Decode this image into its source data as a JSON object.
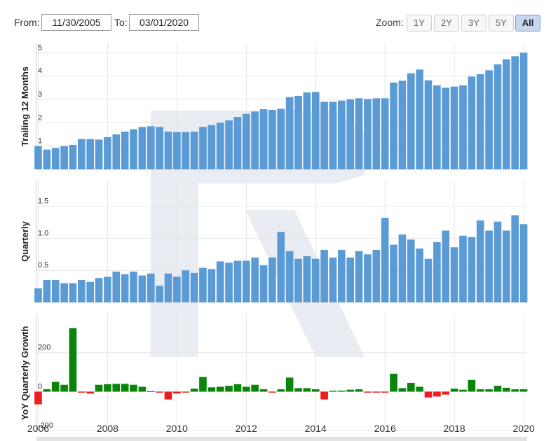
{
  "controls": {
    "from_label": "From:",
    "from_value": "11/30/2005",
    "to_label": "To:",
    "to_value": "03/01/2020",
    "zoom_label": "Zoom:",
    "zoom_options": [
      "1Y",
      "2Y",
      "3Y",
      "5Y",
      "All"
    ],
    "zoom_selected": "All"
  },
  "colors": {
    "bar": "#5b9bd5",
    "positive": "#0a850a",
    "negative": "#ee1c1c",
    "grid": "#e6e6e6"
  },
  "chart_data": [
    {
      "type": "bar",
      "ylabel": "Trailing 12 Months",
      "ylim": [
        0,
        5.4
      ],
      "yticks": [
        "0",
        "1",
        "2",
        "3",
        "4",
        "5"
      ],
      "x": [
        2006,
        2006.25,
        2006.5,
        2006.75,
        2007,
        2007.25,
        2007.5,
        2007.75,
        2008,
        2008.25,
        2008.5,
        2008.75,
        2009,
        2009.25,
        2009.5,
        2009.75,
        2010,
        2010.25,
        2010.5,
        2010.75,
        2011,
        2011.25,
        2011.5,
        2011.75,
        2012,
        2012.25,
        2012.5,
        2012.75,
        2013,
        2013.25,
        2013.5,
        2013.75,
        2014,
        2014.25,
        2014.5,
        2014.75,
        2015,
        2015.25,
        2015.5,
        2015.75,
        2016,
        2016.25,
        2016.5,
        2016.75,
        2017,
        2017.25,
        2017.5,
        2017.75,
        2018,
        2018.25,
        2018.5,
        2018.75,
        2019,
        2019.25,
        2019.5,
        2019.75,
        2020
      ],
      "values": [
        1.0,
        0.85,
        0.92,
        1.0,
        1.05,
        1.3,
        1.3,
        1.28,
        1.38,
        1.5,
        1.62,
        1.72,
        1.82,
        1.85,
        1.82,
        1.62,
        1.6,
        1.6,
        1.62,
        1.82,
        1.9,
        2.0,
        2.1,
        2.25,
        2.38,
        2.48,
        2.58,
        2.55,
        2.6,
        3.1,
        3.15,
        3.3,
        3.32,
        2.9,
        2.9,
        2.95,
        3.0,
        3.05,
        3.02,
        3.05,
        3.05,
        3.72,
        3.8,
        4.12,
        4.28,
        3.82,
        3.6,
        3.5,
        3.55,
        3.6,
        3.98,
        4.08,
        4.25,
        4.5,
        4.72,
        4.85,
        5.0
      ]
    },
    {
      "type": "bar",
      "ylabel": "Quarterly",
      "ylim": [
        0,
        1.9
      ],
      "yticks": [
        "0.0",
        "0.5",
        "1.0",
        "1.5"
      ],
      "x": [
        2006,
        2006.25,
        2006.5,
        2006.75,
        2007,
        2007.25,
        2007.5,
        2007.75,
        2008,
        2008.25,
        2008.5,
        2008.75,
        2009,
        2009.25,
        2009.5,
        2009.75,
        2010,
        2010.25,
        2010.5,
        2010.75,
        2011,
        2011.25,
        2011.5,
        2011.75,
        2012,
        2012.25,
        2012.5,
        2012.75,
        2013,
        2013.25,
        2013.5,
        2013.75,
        2014,
        2014.25,
        2014.5,
        2014.75,
        2015,
        2015.25,
        2015.5,
        2015.75,
        2016,
        2016.25,
        2016.5,
        2016.75,
        2017,
        2017.25,
        2017.5,
        2017.75,
        2018,
        2018.25,
        2018.5,
        2018.75,
        2019,
        2019.25,
        2019.5,
        2019.75,
        2020
      ],
      "values": [
        0.22,
        0.35,
        0.35,
        0.3,
        0.3,
        0.35,
        0.32,
        0.38,
        0.4,
        0.48,
        0.44,
        0.48,
        0.42,
        0.45,
        0.26,
        0.45,
        0.4,
        0.5,
        0.46,
        0.54,
        0.52,
        0.64,
        0.62,
        0.65,
        0.65,
        0.7,
        0.58,
        0.7,
        1.1,
        0.8,
        0.68,
        0.72,
        0.68,
        0.82,
        0.7,
        0.82,
        0.7,
        0.8,
        0.75,
        0.82,
        1.32,
        0.9,
        1.06,
        0.98,
        0.84,
        0.68,
        0.94,
        1.12,
        0.86,
        1.04,
        1.02,
        1.28,
        1.12,
        1.26,
        1.12,
        1.36,
        1.22
      ]
    },
    {
      "type": "bar",
      "ylabel": "YoY Quarterly Growth",
      "ylim": [
        -210,
        400
      ],
      "yticks": [
        "-200",
        "0",
        "200"
      ],
      "x": [
        2006,
        2006.25,
        2006.5,
        2006.75,
        2007,
        2007.25,
        2007.5,
        2007.75,
        2008,
        2008.25,
        2008.5,
        2008.75,
        2009,
        2009.25,
        2009.5,
        2009.75,
        2010,
        2010.25,
        2010.5,
        2010.75,
        2011,
        2011.25,
        2011.5,
        2011.75,
        2012,
        2012.25,
        2012.5,
        2012.75,
        2013,
        2013.25,
        2013.5,
        2013.75,
        2014,
        2014.25,
        2014.5,
        2014.75,
        2015,
        2015.25,
        2015.5,
        2015.75,
        2016,
        2016.25,
        2016.5,
        2016.75,
        2017,
        2017.25,
        2017.5,
        2017.75,
        2018,
        2018.25,
        2018.5,
        2018.75,
        2019,
        2019.25,
        2019.5,
        2019.75,
        2020
      ],
      "values": [
        -65,
        12,
        50,
        35,
        325,
        -5,
        -10,
        35,
        38,
        40,
        40,
        35,
        25,
        2,
        -5,
        -40,
        -10,
        -5,
        15,
        75,
        22,
        25,
        30,
        38,
        25,
        35,
        12,
        -5,
        12,
        72,
        18,
        18,
        12,
        -40,
        5,
        5,
        10,
        12,
        -5,
        -5,
        -5,
        92,
        18,
        45,
        25,
        -30,
        -25,
        -15,
        15,
        10,
        60,
        12,
        12,
        30,
        20,
        12,
        12
      ]
    }
  ],
  "x_axis": {
    "labels": [
      "2006",
      "2008",
      "2010",
      "2012",
      "2014",
      "2016",
      "2018",
      "2020"
    ]
  }
}
